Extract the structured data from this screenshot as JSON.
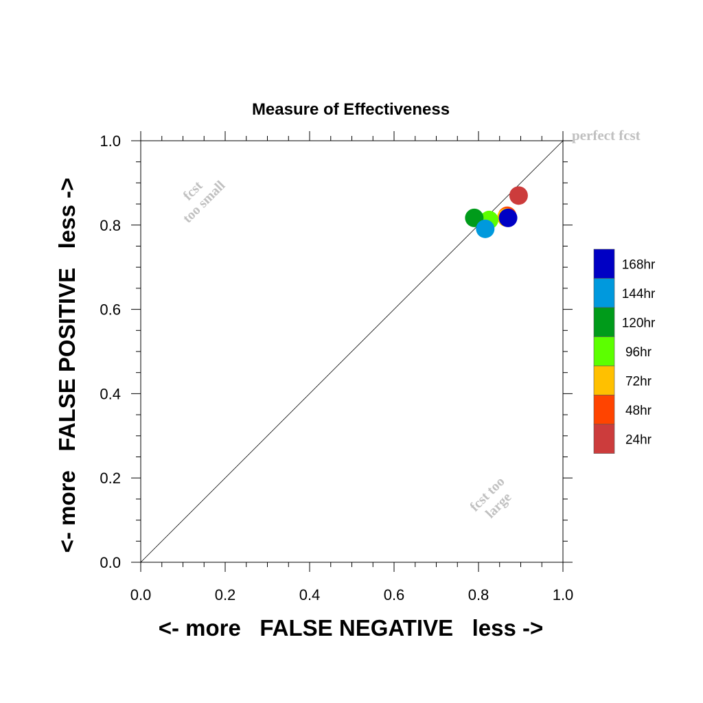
{
  "chart_data": {
    "type": "scatter",
    "title": "Measure of Effectiveness",
    "xlabel": "<- more   FALSE NEGATIVE   less ->",
    "ylabel": "<- more   FALSE POSITIVE   less ->",
    "xlim": [
      0,
      1
    ],
    "ylim": [
      0,
      1
    ],
    "x_ticks": [
      "0.0",
      "0.2",
      "0.4",
      "0.6",
      "0.8",
      "1.0"
    ],
    "y_ticks": [
      "0.0",
      "0.2",
      "0.4",
      "0.6",
      "0.8",
      "1.0"
    ],
    "grid": false,
    "diagonal_reference_line": true,
    "annotations": {
      "perfect": "perfect fcst",
      "too_small_line1": "fcst",
      "too_small_line2": "too small",
      "too_large_line1": "fcst too",
      "too_large_line2": "large"
    },
    "legend_position": "right",
    "series": [
      {
        "name": "24hr",
        "color": "#cc3c3c",
        "x": 0.895,
        "y": 0.87
      },
      {
        "name": "48hr",
        "color": "#ff4400",
        "x": 0.868,
        "y": 0.822
      },
      {
        "name": "72hr",
        "color": "#ffc000",
        "x": 0.866,
        "y": 0.818
      },
      {
        "name": "96hr",
        "color": "#5cff00",
        "x": 0.825,
        "y": 0.812
      },
      {
        "name": "120hr",
        "color": "#009b1a",
        "x": 0.79,
        "y": 0.817
      },
      {
        "name": "144hr",
        "color": "#0099dd",
        "x": 0.816,
        "y": 0.791
      },
      {
        "name": "168hr",
        "color": "#0000c4",
        "x": 0.87,
        "y": 0.817
      }
    ]
  }
}
